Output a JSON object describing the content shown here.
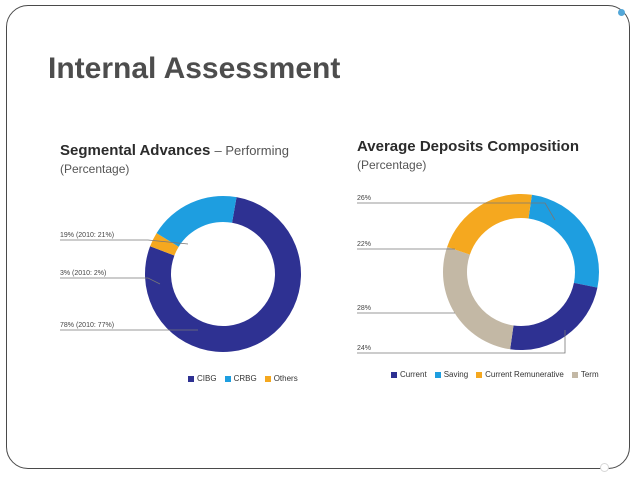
{
  "slide": {
    "title": "Internal Assessment"
  },
  "chart_data": [
    {
      "type": "pie",
      "title": "Segmental Advances",
      "title_suffix": "– Performing",
      "subtitle": "(Percentage)",
      "categories": [
        "CIBG",
        "CRBG",
        "Others"
      ],
      "values": [
        78,
        19,
        3
      ],
      "annotations": [
        "78% (2010: 77%)",
        "19% (2010: 21%)",
        "3% (2010: 2%)"
      ],
      "colors": [
        "#2e3192",
        "#1e9ee0",
        "#f5a81f"
      ],
      "donut": true,
      "legend_position": "bottom"
    },
    {
      "type": "pie",
      "title": "Average Deposits Composition",
      "subtitle": "(Percentage)",
      "categories": [
        "Current",
        "Saving",
        "Current Remunerative",
        "Term"
      ],
      "values": [
        24,
        26,
        22,
        28
      ],
      "annotations": [
        "26%",
        "22%",
        "28%",
        "24%"
      ],
      "colors": [
        "#2e3192",
        "#1e9ee0",
        "#f5a81f",
        "#c3b8a5"
      ],
      "donut": true,
      "legend_position": "bottom"
    }
  ]
}
